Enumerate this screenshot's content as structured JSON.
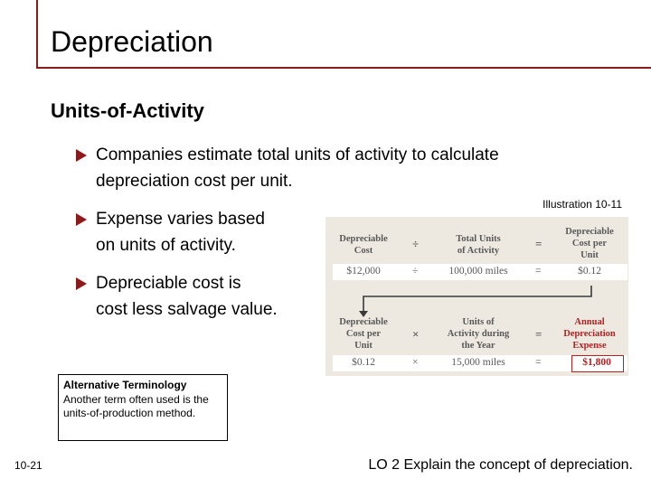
{
  "title": "Depreciation",
  "subtitle": "Units-of-Activity",
  "bullets": [
    {
      "line1": "Companies estimate total units of activity to calculate",
      "line2": "depreciation cost per unit."
    },
    {
      "line1": "Expense varies based",
      "line2": "on units of activity."
    },
    {
      "line1": "Depreciable cost is",
      "line2": "cost less salvage value."
    }
  ],
  "illustration": {
    "label": "Illustration 10-11",
    "row1": {
      "a": "Depreciable\nCost",
      "op1": "÷",
      "b": "Total Units\nof Activity",
      "op2": "=",
      "c": "Depreciable\nCost per\nUnit"
    },
    "row1_values": {
      "a": "$12,000",
      "op1": "÷",
      "b": "100,000 miles",
      "op2": "=",
      "c": "$0.12"
    },
    "row2": {
      "a": "Depreciable\nCost per\nUnit",
      "op1": "×",
      "b": "Units of\nActivity during\nthe Year",
      "op2": "=",
      "c": "Annual\nDepreciation\nExpense"
    },
    "row2_values": {
      "a": "$0.12",
      "op1": "×",
      "b": "15,000 miles",
      "op2": "=",
      "c": "$1,800"
    },
    "colors": {
      "accent": "#b22222",
      "panel": "#ede8e0"
    }
  },
  "alt_terminology": {
    "title": "Alternative Terminology",
    "body": "Another term often used is the units-of-production method."
  },
  "footer": {
    "slide_number": "10-21",
    "learning_objective": "LO 2  Explain the concept of depreciation."
  },
  "colors": {
    "accent": "#8b1a1a"
  }
}
